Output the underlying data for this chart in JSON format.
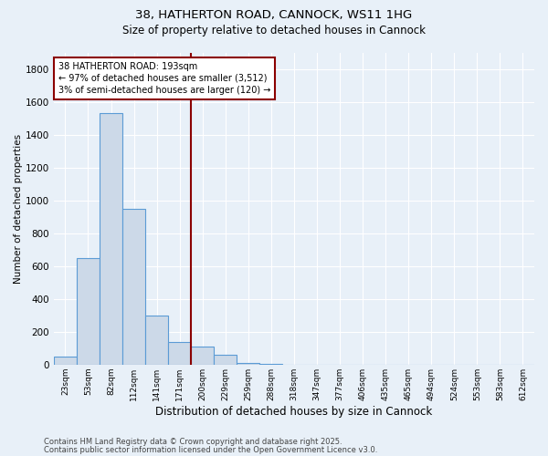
{
  "title_line1": "38, HATHERTON ROAD, CANNOCK, WS11 1HG",
  "title_line2": "Size of property relative to detached houses in Cannock",
  "xlabel": "Distribution of detached houses by size in Cannock",
  "ylabel": "Number of detached properties",
  "categories": [
    "23sqm",
    "53sqm",
    "82sqm",
    "112sqm",
    "141sqm",
    "171sqm",
    "200sqm",
    "229sqm",
    "259sqm",
    "288sqm",
    "318sqm",
    "347sqm",
    "377sqm",
    "406sqm",
    "435sqm",
    "465sqm",
    "494sqm",
    "524sqm",
    "553sqm",
    "583sqm",
    "612sqm"
  ],
  "values": [
    50,
    650,
    1530,
    950,
    300,
    140,
    110,
    60,
    10,
    3,
    1,
    0,
    0,
    0,
    0,
    0,
    0,
    0,
    0,
    0,
    0
  ],
  "bar_color": "#ccd9e8",
  "bar_edge_color": "#5b9bd5",
  "vline_x_idx": 5.5,
  "vline_color": "#8b0000",
  "annotation_text": "38 HATHERTON ROAD: 193sqm\n← 97% of detached houses are smaller (3,512)\n3% of semi-detached houses are larger (120) →",
  "annotation_box_edge": "#8b0000",
  "annotation_box_face": "#ffffff",
  "ylim": [
    0,
    1900
  ],
  "yticks": [
    0,
    200,
    400,
    600,
    800,
    1000,
    1200,
    1400,
    1600,
    1800
  ],
  "background_color": "#e8f0f8",
  "grid_color": "#ffffff",
  "footer_line1": "Contains HM Land Registry data © Crown copyright and database right 2025.",
  "footer_line2": "Contains public sector information licensed under the Open Government Licence v3.0."
}
